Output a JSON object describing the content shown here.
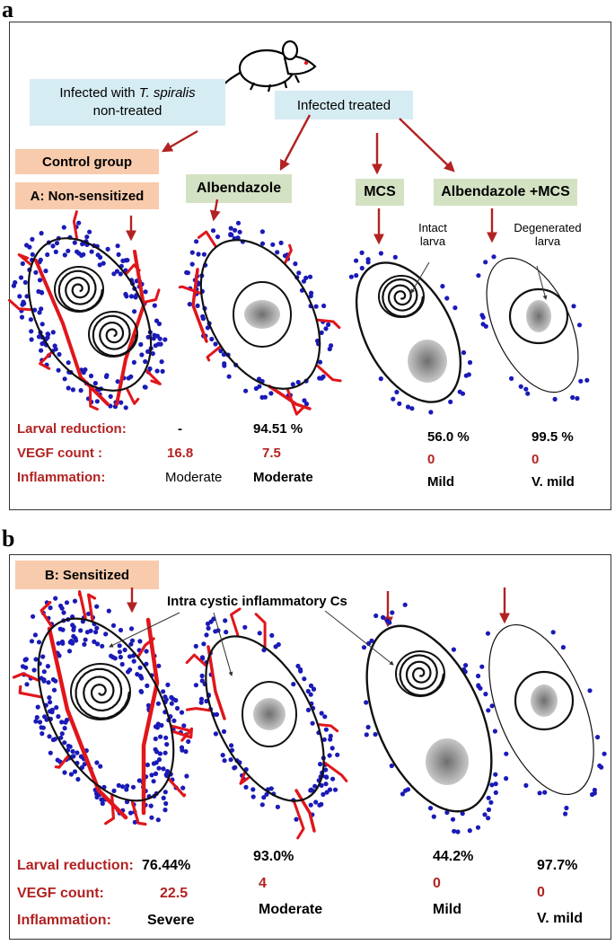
{
  "panel_a": {
    "letter": "a",
    "infected_untreated_line1_prefix": "Infected with ",
    "infected_untreated_line1_italic": "T. spiralis",
    "infected_untreated_line2": "non-treated",
    "infected_treated": "Infected treated",
    "control_group": "Control group",
    "non_sensitized": "A: Non-sensitized",
    "albendazole": "Albendazole",
    "mcs": "MCS",
    "albendazole_mcs": "Albendazole +MCS",
    "intact_larva": "Intact larva",
    "degenerated_larva": "Degenerated larva",
    "row_labels": {
      "larval_reduction": "Larval reduction:",
      "vegf_count": "VEGF count :",
      "inflammation": "Inflammation:"
    },
    "control_values": {
      "reduction": "-",
      "vegf": "16.8",
      "inflammation": "Moderate"
    },
    "albendazole_values": {
      "reduction": "94.51 %",
      "vegf": "7.5",
      "inflammation": "Moderate"
    },
    "mcs_values": {
      "reduction": "56.0 %",
      "vegf": "0",
      "inflammation": "Mild"
    },
    "alb_mcs_values": {
      "reduction": "99.5 %",
      "vegf": "0",
      "inflammation": "V. mild"
    }
  },
  "panel_b": {
    "letter": "b",
    "sensitized": "B: Sensitized",
    "intra_cystic": "Intra cystic inflammatory Cs",
    "row_labels": {
      "larval_reduction": "Larval reduction:",
      "vegf_count": "VEGF count:",
      "inflammation": "Inflammation:"
    },
    "control_values": {
      "reduction": "76.44%",
      "vegf": "22.5",
      "inflammation": "Severe"
    },
    "albendazole_values": {
      "reduction": "93.0%",
      "vegf": "4",
      "inflammation": "Moderate"
    },
    "mcs_values": {
      "reduction": "44.2%",
      "vegf": "0",
      "inflammation": "Mild"
    },
    "alb_mcs_values": {
      "reduction": "97.7%",
      "vegf": "0",
      "inflammation": "V. mild"
    }
  },
  "colors": {
    "vessel": "#e0161b",
    "cell_dot": "#1a1ab8",
    "arrow": "#b22222",
    "label_red": "#b22222",
    "box_blue": "#d6ecf3",
    "box_peach": "#f8cbad",
    "box_green": "#d4e2c4"
  },
  "icons": [
    "mouse-icon",
    "cyst-icon",
    "larva-icon",
    "blood-vessel-icon",
    "inflammatory-cell-icon"
  ]
}
